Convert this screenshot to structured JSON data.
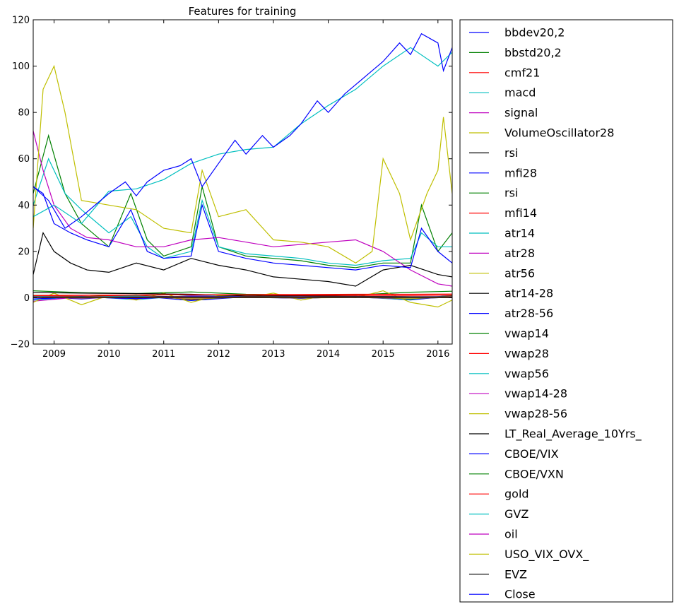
{
  "chart_data": {
    "type": "line",
    "title": "Features for training",
    "xlabel": "",
    "ylabel": "",
    "xlim": [
      2008.62,
      2016.26
    ],
    "ylim": [
      -20,
      120
    ],
    "x_ticks": [
      2009,
      2010,
      2011,
      2012,
      2013,
      2014,
      2015,
      2016
    ],
    "x_tick_labels": [
      "2009",
      "2010",
      "2011",
      "2012",
      "2013",
      "2014",
      "2015",
      "2016"
    ],
    "y_ticks": [
      -20,
      0,
      20,
      40,
      60,
      80,
      100,
      120
    ],
    "y_tick_labels": [
      "−20",
      "0",
      "20",
      "40",
      "60",
      "80",
      "100",
      "120"
    ],
    "grid": false,
    "legend_position": "outside-right",
    "series": [
      {
        "name": "bbdev20,2",
        "color": "#0000ff",
        "x": [
          2008.62,
          2009.5,
          2010.5,
          2011.5,
          2012.5,
          2013.5,
          2014.5,
          2015.5,
          2016.26
        ],
        "y": [
          0.5,
          -0.5,
          0.8,
          -1.2,
          0.4,
          -0.3,
          0.6,
          -1.0,
          0.8
        ]
      },
      {
        "name": "bbstd20,2",
        "color": "#008000",
        "x": [
          2008.62,
          2009.5,
          2010.5,
          2011.5,
          2012.5,
          2013.5,
          2014.5,
          2015.5,
          2016.26
        ],
        "y": [
          3.0,
          2.2,
          1.8,
          2.5,
          1.5,
          1.3,
          1.2,
          2.4,
          2.8
        ]
      },
      {
        "name": "cmf21",
        "color": "#ff0000",
        "x": [
          2008.62,
          2009.5,
          2010.5,
          2011.5,
          2012.5,
          2013.5,
          2014.5,
          2015.5,
          2016.26
        ],
        "y": [
          0.2,
          0.1,
          -0.1,
          0.2,
          0.1,
          0.0,
          0.2,
          -0.1,
          0.1
        ]
      },
      {
        "name": "macd",
        "color": "#00bfbf",
        "x": [
          2008.62,
          2009.5,
          2010.5,
          2011.5,
          2012.5,
          2013.5,
          2014.5,
          2015.5,
          2016.26
        ],
        "y": [
          -1.0,
          0.6,
          -0.8,
          1.0,
          0.5,
          0.4,
          0.3,
          -0.9,
          1.2
        ]
      },
      {
        "name": "signal",
        "color": "#bf00bf",
        "x": [
          2008.62,
          2009.5,
          2010.5,
          2011.5,
          2012.5,
          2013.5,
          2014.5,
          2015.5,
          2016.26
        ],
        "y": [
          -1.5,
          0.4,
          -0.5,
          0.8,
          0.4,
          0.3,
          0.2,
          -0.6,
          0.9
        ]
      },
      {
        "name": "VolumeOscillator28",
        "color": "#bfbf00",
        "x": [
          2008.62,
          2009.0,
          2009.5,
          2010.0,
          2010.5,
          2011.0,
          2011.5,
          2012.0,
          2012.5,
          2013.0,
          2013.5,
          2014.0,
          2014.5,
          2015.0,
          2015.5,
          2016.0,
          2016.26
        ],
        "y": [
          -2,
          2,
          -3,
          1,
          -1,
          2,
          -2,
          1,
          0,
          2,
          -1,
          1,
          0,
          3,
          -2,
          -4,
          -1
        ]
      },
      {
        "name": "rsi",
        "color": "#000000",
        "x": [
          2008.62,
          2009.5,
          2010.5,
          2011.5,
          2012.5,
          2013.5,
          2014.5,
          2015.5,
          2016.26
        ],
        "y": [
          0.6,
          0.5,
          0.7,
          0.4,
          0.6,
          0.5,
          0.6,
          0.4,
          0.5
        ]
      },
      {
        "name": "mfi28",
        "color": "#0000ff",
        "x": [
          2008.62,
          2009.5,
          2010.5,
          2011.5,
          2012.5,
          2013.5,
          2014.5,
          2015.5,
          2016.26
        ],
        "y": [
          0.5,
          0.6,
          0.5,
          0.4,
          0.6,
          0.5,
          0.6,
          0.4,
          0.5
        ]
      },
      {
        "name": "rsi",
        "color": "#008000",
        "x": [
          2008.62,
          2008.9,
          2009.2,
          2009.5,
          2010.0,
          2010.4,
          2010.7,
          2011.0,
          2011.5,
          2011.7,
          2012.0,
          2012.5,
          2013.0,
          2013.5,
          2014.0,
          2014.5,
          2015.0,
          2015.5,
          2015.7,
          2016.0,
          2016.26
        ],
        "y": [
          45,
          70,
          45,
          32,
          22,
          45,
          25,
          18,
          22,
          48,
          22,
          18,
          17,
          16,
          14,
          13,
          15,
          15,
          40,
          20,
          28
        ]
      },
      {
        "name": "mfi14",
        "color": "#ff0000",
        "x": [
          2008.62,
          2009.5,
          2010.5,
          2011.5,
          2012.5,
          2013.5,
          2014.5,
          2015.5,
          2016.26
        ],
        "y": [
          1.0,
          1.1,
          1.2,
          1.3,
          1.3,
          1.4,
          1.5,
          1.5,
          1.6
        ]
      },
      {
        "name": "atr14",
        "color": "#00bfbf",
        "x": [
          2008.62,
          2008.9,
          2009.2,
          2009.5,
          2010.0,
          2010.4,
          2010.7,
          2011.0,
          2011.5,
          2011.7,
          2012.0,
          2012.5,
          2013.0,
          2013.5,
          2014.0,
          2014.5,
          2015.0,
          2015.5,
          2015.7,
          2016.0,
          2016.26
        ],
        "y": [
          40,
          60,
          45,
          38,
          28,
          35,
          22,
          17,
          20,
          42,
          22,
          19,
          18,
          17,
          15,
          14,
          16,
          17,
          28,
          22,
          22
        ]
      },
      {
        "name": "atr28",
        "color": "#bf00bf",
        "x": [
          2008.62,
          2008.8,
          2009.0,
          2009.3,
          2009.6,
          2010.0,
          2010.5,
          2011.0,
          2011.5,
          2012.0,
          2012.5,
          2013.0,
          2013.5,
          2014.0,
          2014.5,
          2015.0,
          2015.5,
          2016.0,
          2016.26
        ],
        "y": [
          72,
          55,
          40,
          30,
          26,
          25,
          22,
          22,
          25,
          26,
          24,
          22,
          23,
          24,
          25,
          20,
          12,
          6,
          5
        ]
      },
      {
        "name": "atr56",
        "color": "#bfbf00",
        "x": [
          2008.62,
          2008.8,
          2009.0,
          2009.2,
          2009.5,
          2010.0,
          2010.5,
          2011.0,
          2011.5,
          2011.7,
          2012.0,
          2012.5,
          2013.0,
          2013.5,
          2014.0,
          2014.5,
          2014.8,
          2015.0,
          2015.3,
          2015.5,
          2015.8,
          2016.0,
          2016.1,
          2016.26
        ],
        "y": [
          30,
          90,
          100,
          80,
          42,
          40,
          38,
          30,
          28,
          55,
          35,
          38,
          25,
          24,
          22,
          15,
          20,
          60,
          45,
          25,
          45,
          55,
          78,
          45
        ]
      },
      {
        "name": "atr14-28",
        "color": "#000000",
        "x": [
          2008.62,
          2008.8,
          2009.0,
          2009.3,
          2009.6,
          2010.0,
          2010.5,
          2011.0,
          2011.5,
          2012.0,
          2012.5,
          2013.0,
          2013.5,
          2014.0,
          2014.5,
          2015.0,
          2015.5,
          2016.0,
          2016.26
        ],
        "y": [
          10,
          28,
          20,
          15,
          12,
          11,
          15,
          12,
          17,
          14,
          12,
          9,
          8,
          7,
          5,
          12,
          14,
          10,
          9
        ]
      },
      {
        "name": "atr28-56",
        "color": "#0000ff",
        "x": [
          2008.62,
          2009.5,
          2010.5,
          2011.5,
          2012.5,
          2013.5,
          2014.5,
          2015.5,
          2016.26
        ],
        "y": [
          -0.5,
          0.3,
          -0.4,
          0.6,
          0.2,
          -0.2,
          0.4,
          -0.6,
          0.3
        ]
      },
      {
        "name": "vwap14",
        "color": "#008000",
        "x": [
          2008.62,
          2009.5,
          2010.5,
          2011.5,
          2012.5,
          2013.5,
          2014.5,
          2015.5,
          2016.26
        ],
        "y": [
          1.0,
          0.5,
          1.2,
          -0.8,
          0.6,
          0.4,
          0.5,
          -0.5,
          0.8
        ]
      },
      {
        "name": "vwap28",
        "color": "#ff0000",
        "x": [
          2008.62,
          2009.5,
          2010.5,
          2011.5,
          2012.5,
          2013.5,
          2014.5,
          2015.5,
          2016.26
        ],
        "y": [
          0.8,
          0.4,
          1.0,
          -0.6,
          0.5,
          0.3,
          0.4,
          -0.4,
          0.6
        ]
      },
      {
        "name": "vwap56",
        "color": "#00bfbf",
        "x": [
          2008.62,
          2009.5,
          2010.5,
          2011.5,
          2012.5,
          2013.5,
          2014.5,
          2015.5,
          2016.26
        ],
        "y": [
          0.6,
          0.3,
          0.8,
          -0.4,
          0.4,
          0.2,
          0.3,
          -0.3,
          0.5
        ]
      },
      {
        "name": "vwap14-28",
        "color": "#bf00bf",
        "x": [
          2008.62,
          2009.5,
          2010.5,
          2011.5,
          2012.5,
          2013.5,
          2014.5,
          2015.5,
          2016.26
        ],
        "y": [
          0.2,
          -0.2,
          0.3,
          -0.3,
          0.2,
          -0.1,
          0.2,
          -0.2,
          0.2
        ]
      },
      {
        "name": "vwap28-56",
        "color": "#bfbf00",
        "x": [
          2008.62,
          2009.5,
          2010.5,
          2011.5,
          2012.5,
          2013.5,
          2014.5,
          2015.5,
          2016.26
        ],
        "y": [
          0.2,
          -0.1,
          0.2,
          -0.2,
          0.1,
          -0.1,
          0.1,
          -0.2,
          0.1
        ]
      },
      {
        "name": "LT_Real_Average_10Yrs_",
        "color": "#000000",
        "x": [
          2008.62,
          2009.5,
          2010.5,
          2011.5,
          2012.5,
          2013.5,
          2014.5,
          2015.5,
          2016.26
        ],
        "y": [
          2.2,
          2.0,
          1.8,
          1.5,
          0.8,
          0.9,
          0.6,
          0.5,
          0.4
        ]
      },
      {
        "name": "CBOE/VIX",
        "color": "#0000ff",
        "x": [
          2008.62,
          2008.8,
          2009.0,
          2009.3,
          2009.6,
          2010.0,
          2010.4,
          2010.7,
          2011.0,
          2011.5,
          2011.7,
          2012.0,
          2012.5,
          2013.0,
          2013.5,
          2014.0,
          2014.5,
          2015.0,
          2015.5,
          2015.7,
          2016.0,
          2016.26
        ],
        "y": [
          48,
          45,
          32,
          28,
          25,
          22,
          38,
          20,
          17,
          18,
          40,
          20,
          17,
          15,
          14,
          13,
          12,
          14,
          13,
          30,
          20,
          15
        ]
      },
      {
        "name": "CBOE/VXN",
        "color": "#008000",
        "x": [
          2008.62,
          2009.5,
          2010.5,
          2011.5,
          2012.5,
          2013.5,
          2014.5,
          2015.5,
          2016.26
        ],
        "y": [
          0.4,
          0.4,
          0.4,
          0.4,
          0.4,
          0.4,
          0.4,
          0.4,
          0.4
        ]
      },
      {
        "name": "gold",
        "color": "#ff0000",
        "x": [
          2008.62,
          2009.5,
          2010.5,
          2011.5,
          2012.5,
          2013.5,
          2014.5,
          2015.5,
          2016.26
        ],
        "y": [
          0.9,
          1.0,
          1.1,
          1.3,
          1.2,
          1.1,
          1.0,
          1.0,
          1.1
        ]
      },
      {
        "name": "GVZ",
        "color": "#00bfbf",
        "x": [
          2008.62,
          2009.0,
          2009.5,
          2010.0,
          2010.5,
          2011.0,
          2011.5,
          2012.0,
          2012.5,
          2013.0,
          2013.5,
          2014.0,
          2014.5,
          2015.0,
          2015.5,
          2016.0,
          2016.26
        ],
        "y": [
          35,
          40,
          32,
          46,
          47,
          51,
          58,
          62,
          64,
          65,
          75,
          83,
          90,
          100,
          108,
          100,
          106
        ]
      },
      {
        "name": "oil",
        "color": "#bf00bf",
        "x": [
          2008.62,
          2009.5,
          2010.5,
          2011.5,
          2012.5,
          2013.5,
          2014.5,
          2015.5,
          2016.26
        ],
        "y": [
          0.3,
          0.3,
          0.3,
          0.3,
          0.3,
          0.3,
          0.3,
          0.3,
          0.3
        ]
      },
      {
        "name": "USO_VIX_OVX_",
        "color": "#bfbf00",
        "x": [
          2008.62,
          2009.5,
          2010.5,
          2011.5,
          2012.5,
          2013.5,
          2014.5,
          2015.5,
          2016.26
        ],
        "y": [
          0.2,
          0.2,
          0.2,
          0.2,
          0.2,
          0.2,
          0.2,
          0.2,
          0.2
        ]
      },
      {
        "name": "EVZ",
        "color": "#000000",
        "x": [
          2008.62,
          2009.5,
          2010.5,
          2011.5,
          2012.5,
          2013.5,
          2014.5,
          2015.5,
          2016.26
        ],
        "y": [
          0.1,
          0.1,
          0.1,
          0.1,
          0.1,
          0.1,
          0.1,
          0.1,
          0.1
        ]
      },
      {
        "name": "Close",
        "color": "#0000ff",
        "x": [
          2008.62,
          2008.9,
          2009.2,
          2009.5,
          2010.0,
          2010.3,
          2010.5,
          2010.7,
          2011.0,
          2011.3,
          2011.5,
          2011.7,
          2012.0,
          2012.3,
          2012.5,
          2012.8,
          2013.0,
          2013.3,
          2013.5,
          2013.8,
          2014.0,
          2014.3,
          2014.5,
          2014.8,
          2015.0,
          2015.3,
          2015.5,
          2015.7,
          2016.0,
          2016.1,
          2016.26
        ],
        "y": [
          48,
          42,
          30,
          35,
          45,
          50,
          44,
          50,
          55,
          57,
          60,
          48,
          58,
          68,
          62,
          70,
          65,
          70,
          75,
          85,
          80,
          88,
          92,
          98,
          102,
          110,
          105,
          114,
          110,
          98,
          108
        ]
      }
    ]
  }
}
